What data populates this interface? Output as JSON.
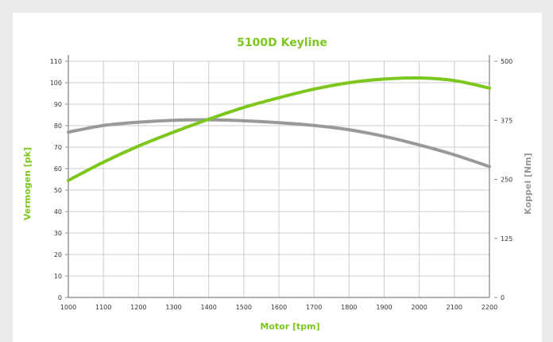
{
  "chart_data": {
    "type": "line",
    "title": "5100D Keyline",
    "xlabel": "Motor [tpm]",
    "ylabel_left": "Vermogen [pk]",
    "ylabel_right": "Koppel [Nm]",
    "xlim": [
      1000,
      2200
    ],
    "ylim_left": [
      0,
      110
    ],
    "ylim_right": [
      0,
      500
    ],
    "x_ticks": [
      "1000",
      "1100",
      "1200",
      "1300",
      "1400",
      "1500",
      "1600",
      "1700",
      "1800",
      "1900",
      "2000",
      "2100",
      "2200"
    ],
    "y_left_ticks": [
      "0",
      "10",
      "20",
      "30",
      "40",
      "50",
      "60",
      "70",
      "80",
      "90",
      "100",
      "110"
    ],
    "y_right_ticks": [
      "0",
      "125",
      "250",
      "375",
      "500"
    ],
    "grid": true,
    "series": [
      {
        "axis": "left",
        "color": "#7dc61e",
        "x": [
          1000,
          1100,
          1200,
          1300,
          1400,
          1500,
          1600,
          1700,
          1800,
          1900,
          2000,
          2100,
          2200
        ],
        "values": [
          54.5,
          63,
          70.5,
          77,
          83,
          88.5,
          93,
          97,
          100,
          101.7,
          102.2,
          101,
          97.5
        ]
      },
      {
        "axis": "right",
        "color": "#999999",
        "x": [
          1000,
          1100,
          1200,
          1300,
          1400,
          1500,
          1600,
          1700,
          1800,
          1900,
          2000,
          2100,
          2200
        ],
        "values": [
          350,
          364,
          371,
          375,
          376,
          374,
          370,
          364,
          355,
          341,
          323,
          302,
          277
        ]
      }
    ]
  }
}
